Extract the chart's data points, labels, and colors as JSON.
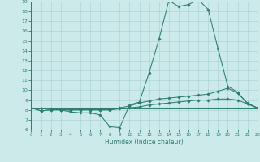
{
  "xlabel": "Humidex (Indice chaleur)",
  "xlim": [
    0,
    23
  ],
  "ylim": [
    6,
    19
  ],
  "xticks": [
    0,
    1,
    2,
    3,
    4,
    5,
    6,
    7,
    8,
    9,
    10,
    11,
    12,
    13,
    14,
    15,
    16,
    17,
    18,
    19,
    20,
    21,
    22,
    23
  ],
  "yticks": [
    6,
    7,
    8,
    9,
    10,
    11,
    12,
    13,
    14,
    15,
    16,
    17,
    18,
    19
  ],
  "bg_color": "#cceaea",
  "line_color": "#2e7d6e",
  "grid_color": "#aed4d4",
  "lines": [
    {
      "x": [
        0,
        1,
        2,
        3,
        4,
        5,
        6,
        7,
        8,
        9,
        10,
        11,
        12,
        13,
        14,
        15,
        16,
        17,
        18,
        19,
        20,
        21,
        22,
        23
      ],
      "y": [
        8.2,
        7.9,
        8.0,
        8.0,
        7.8,
        7.7,
        7.7,
        7.5,
        6.3,
        6.2,
        8.5,
        8.8,
        11.8,
        15.2,
        19.1,
        18.5,
        18.7,
        19.2,
        18.2,
        14.2,
        10.4,
        9.8,
        8.6,
        8.2
      ],
      "marker": true
    },
    {
      "x": [
        0,
        1,
        2,
        3,
        4,
        5,
        6,
        7,
        8,
        9,
        10,
        11,
        12,
        13,
        14,
        15,
        16,
        17,
        18,
        19,
        20,
        21,
        22,
        23
      ],
      "y": [
        8.2,
        7.9,
        8.0,
        8.0,
        8.0,
        8.0,
        8.0,
        8.0,
        8.0,
        8.2,
        8.4,
        8.7,
        8.9,
        9.1,
        9.2,
        9.3,
        9.4,
        9.5,
        9.6,
        9.9,
        10.2,
        9.7,
        8.7,
        8.2
      ],
      "marker": true
    },
    {
      "x": [
        0,
        1,
        2,
        3,
        4,
        5,
        6,
        7,
        8,
        9,
        10,
        11,
        12,
        13,
        14,
        15,
        16,
        17,
        18,
        19,
        20,
        21,
        22,
        23
      ],
      "y": [
        8.2,
        8.1,
        8.1,
        8.0,
        8.0,
        8.0,
        8.0,
        8.0,
        8.0,
        8.1,
        8.2,
        8.3,
        8.5,
        8.6,
        8.7,
        8.8,
        8.9,
        9.0,
        9.0,
        9.1,
        9.1,
        9.0,
        8.6,
        8.2
      ],
      "marker": true
    },
    {
      "x": [
        0,
        23
      ],
      "y": [
        8.2,
        8.2
      ],
      "marker": false
    }
  ]
}
